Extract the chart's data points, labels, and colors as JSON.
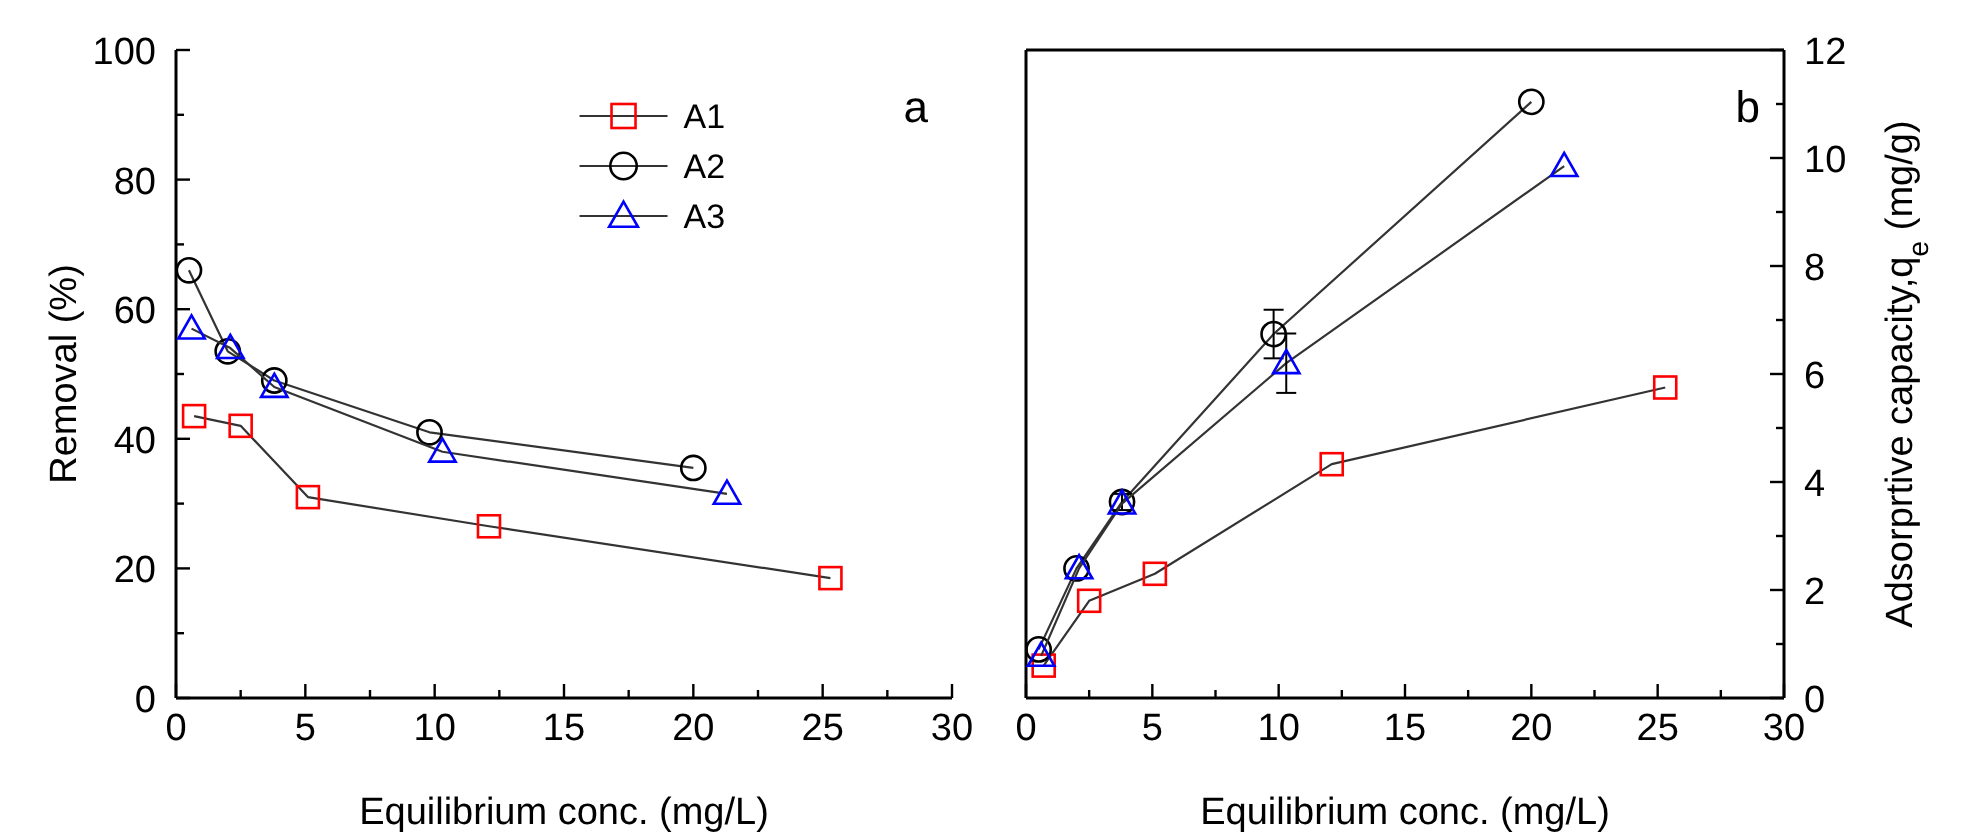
{
  "chart_data": [
    {
      "type": "line",
      "xlabel": "Equilibrium conc. (mg/L)",
      "ylabel": "Removal (%)",
      "annotations": [
        "a"
      ],
      "xlim": [
        0,
        30
      ],
      "xticks": [
        0,
        {
          "value": 2.5,
          "label": null
        },
        5,
        {
          "value": 7.5,
          "label": null
        },
        10,
        {
          "value": 12.5,
          "label": null
        },
        15,
        {
          "value": 17.5,
          "label": null
        },
        20,
        {
          "value": 22.5,
          "label": null
        },
        25,
        {
          "value": 27.5,
          "label": null
        },
        30
      ],
      "ylim": [
        0,
        100
      ],
      "yticks": [
        0,
        {
          "value": 10,
          "label": null
        },
        20,
        {
          "value": 30,
          "label": null
        },
        40,
        {
          "value": 50,
          "label": null
        },
        60,
        {
          "value": 70,
          "label": null
        },
        80,
        {
          "value": 90,
          "label": null
        },
        100
      ],
      "legend": "top",
      "grid": false,
      "series": [
        {
          "name": "A1",
          "color": "#ff0000",
          "marker": "square",
          "x": [
            0.7,
            2.5,
            5.1,
            12.1,
            25.3
          ],
          "values": [
            43.5,
            42,
            31,
            26.5,
            18.5
          ]
        },
        {
          "name": "A2",
          "color": "#000000",
          "marker": "circle",
          "x": [
            0.5,
            2.0,
            3.8,
            9.8,
            20.0
          ],
          "values": [
            66,
            53.5,
            49,
            41,
            35.5
          ]
        },
        {
          "name": "A3",
          "color": "#0000ff",
          "marker": "triangle",
          "x": [
            0.6,
            2.1,
            3.8,
            10.3,
            21.3
          ],
          "values": [
            57,
            54,
            48,
            38,
            31.5
          ]
        }
      ]
    },
    {
      "type": "line",
      "xlabel": "Equilibrium conc. (mg/L)",
      "y2label": "Adsorprtive capacity,q$_{e}$ (mg/g)",
      "annotations": [
        "b"
      ],
      "xlim": [
        0,
        30
      ],
      "xticks": [
        0,
        {
          "value": 2.5,
          "label": null
        },
        5,
        {
          "value": 7.5,
          "label": null
        },
        10,
        {
          "value": 12.5,
          "label": null
        },
        15,
        {
          "value": 17.5,
          "label": null
        },
        20,
        {
          "value": 22.5,
          "label": null
        },
        25,
        {
          "value": 27.5,
          "label": null
        },
        30
      ],
      "y2lim": [
        0,
        12
      ],
      "y2ticks": [
        0,
        {
          "value": 1,
          "label": null
        },
        2,
        {
          "value": 3,
          "label": null
        },
        4,
        {
          "value": 5,
          "label": null
        },
        6,
        {
          "value": 7,
          "label": null
        },
        8,
        {
          "value": 9,
          "label": null
        },
        10,
        {
          "value": 11,
          "label": null
        },
        12
      ],
      "legend": false,
      "grid": false,
      "series": [
        {
          "color": "#ff0000",
          "marker": "square",
          "axis": "y2",
          "x": [
            0.7,
            2.5,
            5.1,
            12.1,
            25.3
          ],
          "values": [
            0.6,
            1.8,
            2.3,
            4.33,
            5.75
          ]
        },
        {
          "color": "#000000",
          "marker": "circle",
          "axis": "y2",
          "x": [
            0.5,
            2.0,
            3.8,
            9.8,
            20.0
          ],
          "values": [
            0.9,
            2.4,
            3.63,
            6.74,
            11.04
          ],
          "errors": [
            null,
            null,
            0.15,
            0.45,
            null
          ]
        },
        {
          "color": "#0000ff",
          "marker": "triangle",
          "axis": "y2",
          "x": [
            0.6,
            2.1,
            3.8,
            10.3,
            21.3
          ],
          "values": [
            0.78,
            2.4,
            3.6,
            6.2,
            9.85
          ],
          "errors": [
            null,
            null,
            null,
            0.55,
            null
          ]
        }
      ]
    }
  ]
}
